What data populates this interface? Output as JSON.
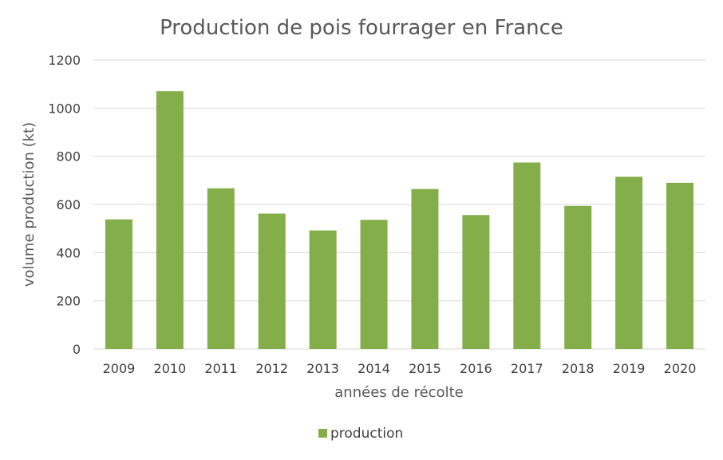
{
  "chart_data": {
    "type": "bar",
    "title": "Production de pois fourrager en France",
    "xlabel": "années de récolte",
    "ylabel": "volume production (kt)",
    "categories": [
      "2009",
      "2010",
      "2011",
      "2012",
      "2013",
      "2014",
      "2015",
      "2016",
      "2017",
      "2018",
      "2019",
      "2020"
    ],
    "series": [
      {
        "name": "production",
        "values": [
          538,
          1070,
          667,
          562,
          492,
          536,
          664,
          556,
          774,
          594,
          715,
          690
        ]
      }
    ],
    "ylim": [
      0,
      1200
    ],
    "yticks": [
      0,
      200,
      400,
      600,
      800,
      1000,
      1200
    ],
    "grid": true,
    "legend": "bottom",
    "colors": {
      "bar": "#84AE4A",
      "grid": "#D9D9D9",
      "text": "#595959"
    }
  }
}
